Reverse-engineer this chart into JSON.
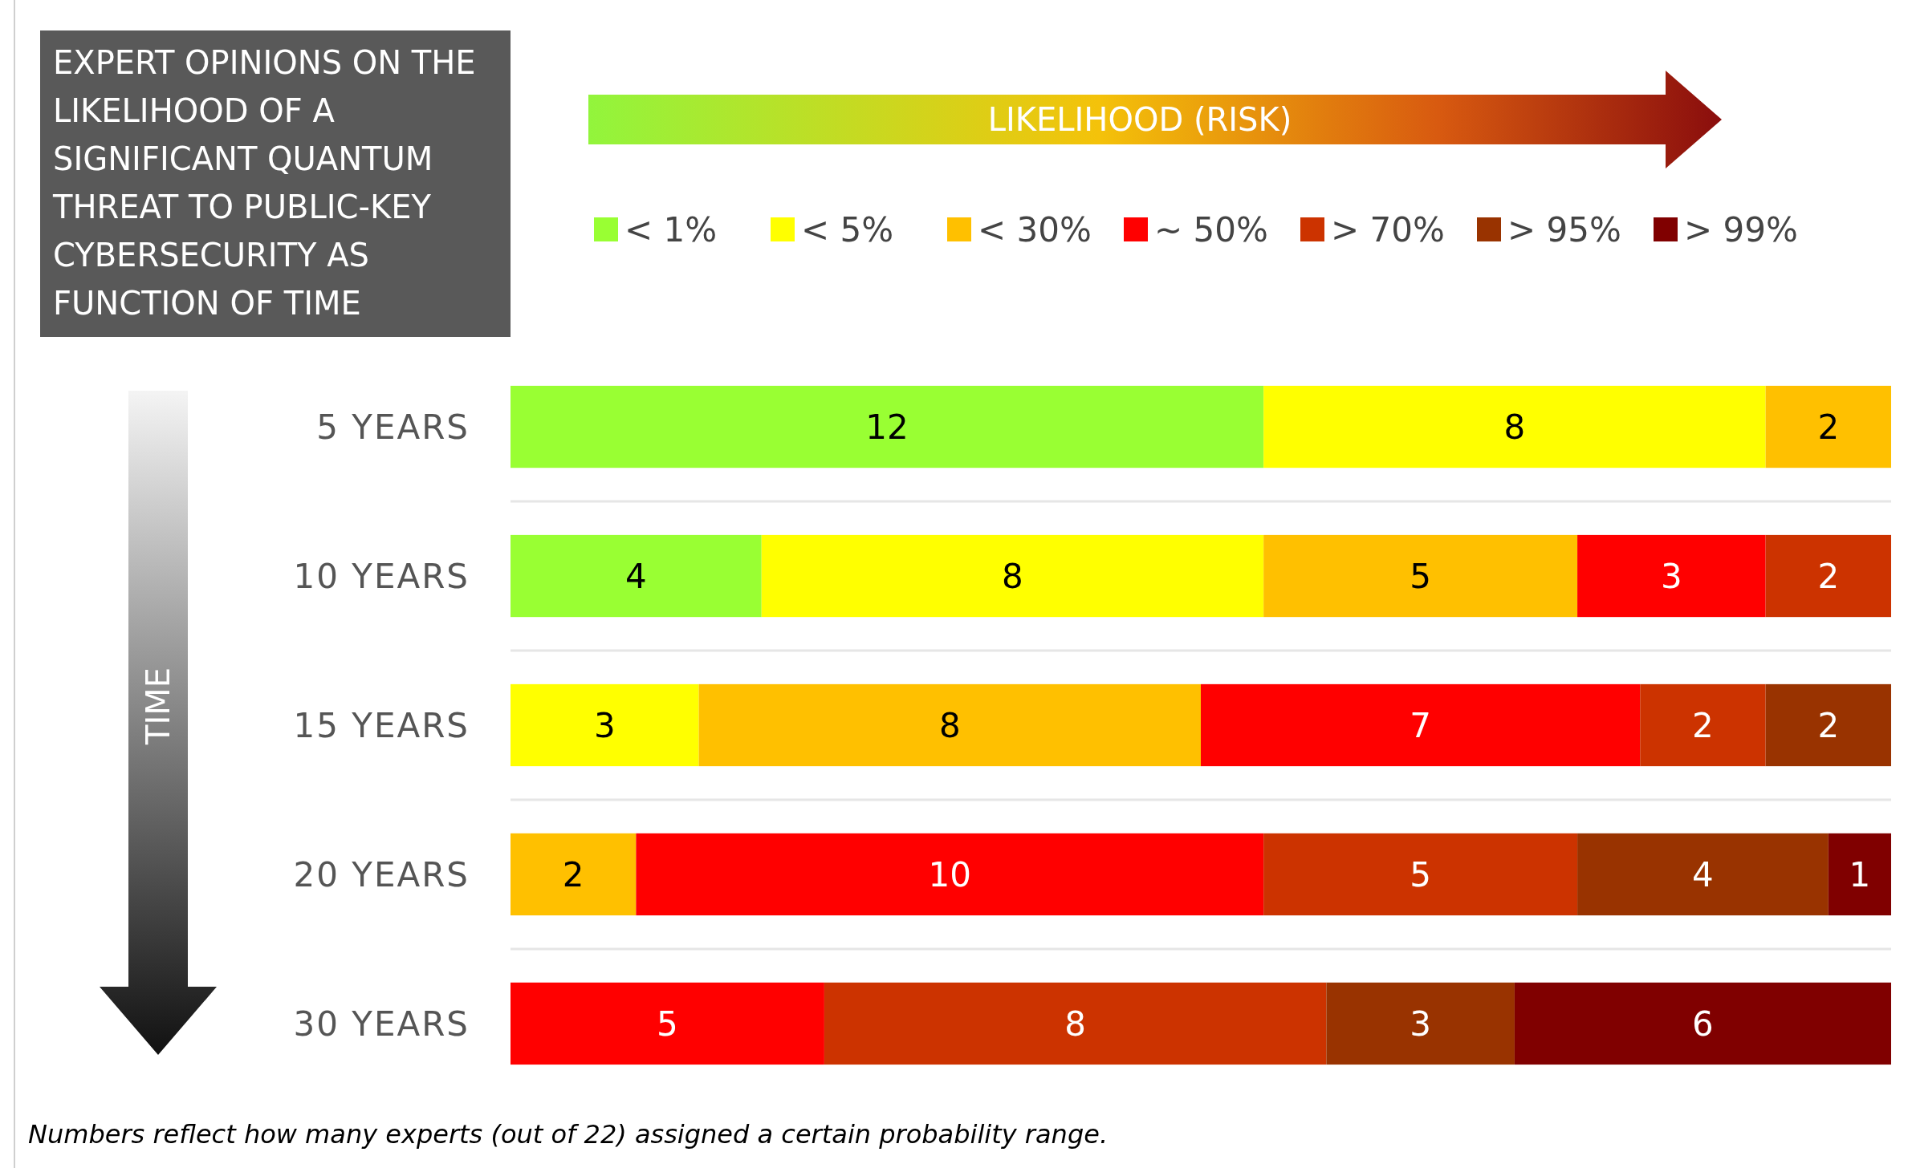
{
  "chart_data": {
    "type": "bar",
    "orientation": "horizontal",
    "stacked": true,
    "data_labels": true,
    "legend": "top",
    "title": "EXPERT OPINIONS ON THE LIKELIHOOD OF A SIGNIFICANT QUANTUM THREAT TO PUBLIC-KEY CYBERSECURITY AS FUNCTION OF TIME",
    "categories": [
      "5 YEARS",
      "10 YEARS",
      "15 YEARS",
      "20 YEARS",
      "30 YEARS"
    ],
    "series": [
      {
        "name": "< 1%",
        "color": "#99ff33",
        "values": [
          12,
          4,
          null,
          null,
          null
        ]
      },
      {
        "name": "< 5%",
        "color": "#ffff00",
        "values": [
          8,
          8,
          3,
          null,
          null
        ]
      },
      {
        "name": "< 30%",
        "color": "#ffc000",
        "values": [
          2,
          5,
          8,
          2,
          null
        ]
      },
      {
        "name": "~ 50%",
        "color": "#ff0000",
        "values": [
          null,
          3,
          7,
          10,
          5
        ]
      },
      {
        "name": "> 70%",
        "color": "#cc3300",
        "values": [
          null,
          2,
          2,
          5,
          8
        ]
      },
      {
        "name": "> 95%",
        "color": "#993300",
        "values": [
          null,
          null,
          2,
          4,
          3
        ]
      },
      {
        "name": "> 99%",
        "color": "#800000",
        "values": [
          null,
          null,
          null,
          1,
          6
        ]
      }
    ],
    "annotations": [
      "LIKELIHOOD (RISK)",
      "TIME",
      "Numbers reflect how many experts (out of 22) assigned a certain probability range."
    ]
  }
}
